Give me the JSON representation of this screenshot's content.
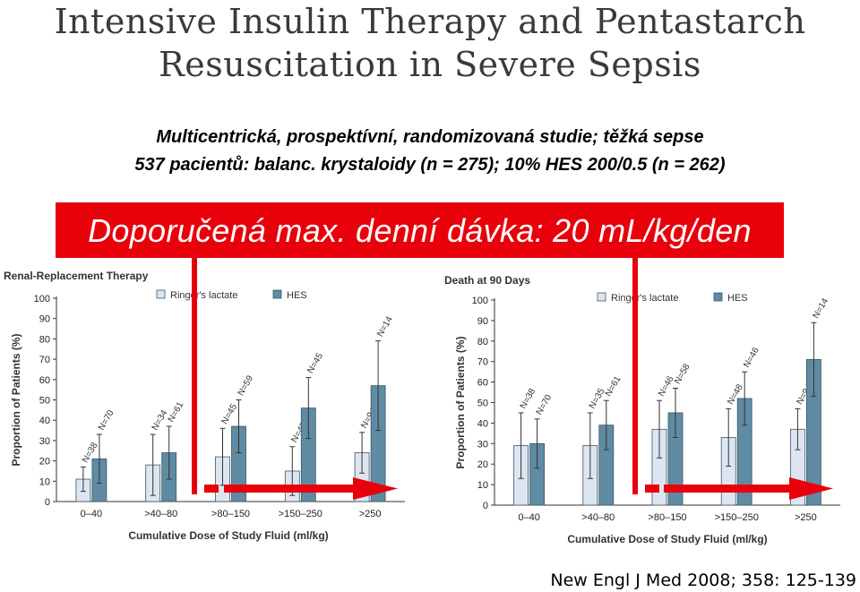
{
  "header": {
    "title_line1": "Intensive Insulin Therapy and Pentastarch",
    "title_line2": "Resuscitation in Severe Sepsis"
  },
  "subtitle": {
    "line1": "Multicentrická, prospektívní, randomizovaná studie; těžká sepse",
    "line2": "537 pacientů: balanc. krystaloidy (n =  275); 10% HES 200/0.5 (n =  262)"
  },
  "dose_banner": "Doporučená max. denní dávka: 20 mL/kg/den",
  "citation": "New Engl J Med 2008; 358: 125-139",
  "colors": {
    "ringers": "#dde6f0",
    "hes": "#5f8ba3",
    "accent_red": "#e8000b",
    "axis": "#333333"
  },
  "chart_data": [
    {
      "type": "bar",
      "title": "Renal-Replacement Therapy",
      "xlabel": "Cumulative Dose of Study Fluid (ml/kg)",
      "ylabel": "Proportion of Patients (%)",
      "ylim": [
        0,
        100
      ],
      "yticks": [
        0,
        10,
        20,
        30,
        40,
        50,
        60,
        70,
        80,
        90,
        100
      ],
      "categories": [
        "0–40",
        ">40–80",
        ">80–150",
        ">150–250",
        ">250"
      ],
      "series": [
        {
          "name": "Ringer's lactate",
          "values": [
            11,
            18,
            22,
            15,
            24
          ],
          "err": [
            6,
            15,
            14,
            12,
            10
          ],
          "n": [
            "N=38",
            "N=34",
            "N=45",
            "N=48",
            "N=94"
          ]
        },
        {
          "name": "HES",
          "values": [
            21,
            24,
            37,
            46,
            57
          ],
          "err": [
            12,
            13,
            13,
            15,
            22
          ],
          "n": [
            "N=70",
            "N=61",
            "N=59",
            "N=45",
            "N=14"
          ]
        }
      ],
      "legend": "top-center"
    },
    {
      "type": "bar",
      "title": "Death at 90 Days",
      "xlabel": "Cumulative Dose of Study Fluid (ml/kg)",
      "ylabel": "Proportion of Patients (%)",
      "ylim": [
        0,
        100
      ],
      "yticks": [
        0,
        10,
        20,
        30,
        40,
        50,
        60,
        70,
        80,
        90,
        100
      ],
      "categories": [
        "0–40",
        ">40–80",
        ">80–150",
        ">150–250",
        ">250"
      ],
      "series": [
        {
          "name": "Ringer's lactate",
          "values": [
            29,
            29,
            37,
            33,
            37
          ],
          "err": [
            16,
            16,
            14,
            14,
            10
          ],
          "n": [
            "N=38",
            "N=35",
            "N=46",
            "N=48",
            "N=94"
          ]
        },
        {
          "name": "HES",
          "values": [
            30,
            39,
            45,
            52,
            71
          ],
          "err": [
            12,
            12,
            12,
            13,
            18
          ],
          "n": [
            "N=70",
            "N=61",
            "N=58",
            "N=46",
            "N=14"
          ]
        }
      ],
      "legend": "top-center"
    }
  ]
}
